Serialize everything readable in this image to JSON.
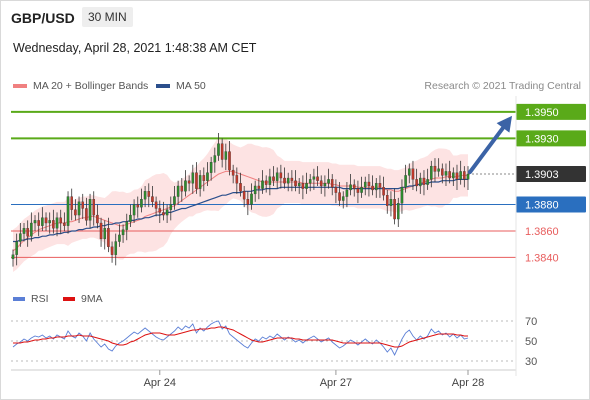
{
  "header": {
    "symbol": "GBP/USD",
    "timeframe": "30 MIN",
    "timestamp": "Wednesday, April 28, 2021 1:48:38 AM CET"
  },
  "legend": {
    "items": [
      {
        "label": "MA 20 + Bollinger Bands",
        "color": "#f08080"
      },
      {
        "label": "MA 50",
        "color": "#2b4f8c"
      }
    ],
    "credit": "Research © 2021 Trading Central"
  },
  "rsi_legend": {
    "items": [
      {
        "label": "RSI",
        "color": "#5b7fd6"
      },
      {
        "label": "9MA",
        "color": "#dd1111"
      }
    ]
  },
  "chart_data": [
    {
      "type": "line",
      "panel": "price",
      "ylim": [
        1.3832,
        1.3962
      ],
      "xlabel": "",
      "ylabel": "",
      "x_ticks": [
        "Apr 24",
        "Apr 27",
        "Apr 28"
      ],
      "grid": false,
      "levels": [
        {
          "value": 1.395,
          "label": "1.3950",
          "style": "resistance",
          "color": "#5aaa19"
        },
        {
          "value": 1.393,
          "label": "1.3930",
          "style": "resistance",
          "color": "#5aaa19"
        },
        {
          "value": 1.3903,
          "label": "1.3903",
          "style": "last-price",
          "color": "#333333"
        },
        {
          "value": 1.388,
          "label": "1.3880",
          "style": "pivot",
          "color": "#2a6fbf"
        },
        {
          "value": 1.386,
          "label": "1.3860",
          "style": "support",
          "color": "#e85d5d"
        },
        {
          "value": 1.384,
          "label": "1.3840",
          "style": "support",
          "color": "#e85d5d"
        }
      ],
      "arrow": {
        "direction": "up",
        "target": 1.395
      },
      "series": [
        {
          "name": "Close",
          "values": [
            1.3842,
            1.3852,
            1.3858,
            1.3862,
            1.3856,
            1.3866,
            1.3868,
            1.3864,
            1.387,
            1.3866,
            1.3868,
            1.3862,
            1.387,
            1.3866,
            1.3864,
            1.3886,
            1.3876,
            1.3872,
            1.3882,
            1.3877,
            1.3868,
            1.3884,
            1.3872,
            1.3866,
            1.3854,
            1.3862,
            1.3848,
            1.3842,
            1.3852,
            1.3857,
            1.3861,
            1.3867,
            1.3872,
            1.388,
            1.3878,
            1.3884,
            1.389,
            1.3886,
            1.3882,
            1.3877,
            1.3874,
            1.3872,
            1.3876,
            1.388,
            1.3886,
            1.3894,
            1.389,
            1.3898,
            1.3896,
            1.3904,
            1.3892,
            1.3902,
            1.3898,
            1.3904,
            1.3912,
            1.3917,
            1.3926,
            1.3914,
            1.392,
            1.3906,
            1.3902,
            1.3896,
            1.389,
            1.3884,
            1.388,
            1.3888,
            1.3894,
            1.3892,
            1.3898,
            1.3895,
            1.3901,
            1.3898,
            1.3904,
            1.39,
            1.3896,
            1.39,
            1.3898,
            1.3894,
            1.3896,
            1.3892,
            1.3896,
            1.3899,
            1.3901,
            1.3898,
            1.3894,
            1.3896,
            1.3899,
            1.3893,
            1.3889,
            1.3883,
            1.3886,
            1.3891,
            1.3895,
            1.3892,
            1.3889,
            1.3893,
            1.3897,
            1.3894,
            1.3891,
            1.3896,
            1.3893,
            1.3887,
            1.3879,
            1.3884,
            1.3869,
            1.3881,
            1.3893,
            1.3902,
            1.3907,
            1.3899,
            1.3894,
            1.39,
            1.3895,
            1.3899,
            1.3909,
            1.3905,
            1.3907,
            1.3902,
            1.3905,
            1.39,
            1.3904,
            1.3899,
            1.3905,
            1.3899,
            1.3903
          ]
        },
        {
          "name": "MA 20",
          "values": [
            1.3845,
            1.3847,
            1.385,
            1.3853,
            1.3855,
            1.3857,
            1.3859,
            1.3861,
            1.3862,
            1.3863,
            1.3864,
            1.3865,
            1.3866,
            1.3866,
            1.3866,
            1.3867,
            1.3867,
            1.3868,
            1.3869,
            1.387,
            1.387,
            1.3871,
            1.3871,
            1.387,
            1.3869,
            1.3868,
            1.3867,
            1.3866,
            1.3865,
            1.3864,
            1.3864,
            1.3865,
            1.3866,
            1.3867,
            1.3868,
            1.3869,
            1.3871,
            1.3872,
            1.3873,
            1.3874,
            1.3875,
            1.3876,
            1.3877,
            1.3878,
            1.3879,
            1.3881,
            1.3883,
            1.3885,
            1.3887,
            1.3889,
            1.3891,
            1.3893,
            1.3895,
            1.3897,
            1.3899,
            1.3901,
            1.3903,
            1.3904,
            1.3905,
            1.3905,
            1.3905,
            1.3904,
            1.3903,
            1.3902,
            1.3901,
            1.39,
            1.3899,
            1.3898,
            1.3897,
            1.3897,
            1.3897,
            1.3897,
            1.3897,
            1.3897,
            1.3897,
            1.3897,
            1.3897,
            1.3897,
            1.3897,
            1.3896,
            1.3896,
            1.3896,
            1.3896,
            1.3896,
            1.3896,
            1.3896,
            1.3896,
            1.3895,
            1.3895,
            1.3894,
            1.3894,
            1.3894,
            1.3894,
            1.3894,
            1.3893,
            1.3893,
            1.3893,
            1.3893,
            1.3893,
            1.3893,
            1.3893,
            1.3892,
            1.3891,
            1.3891,
            1.389,
            1.389,
            1.3891,
            1.3892,
            1.3893,
            1.3894,
            1.3895,
            1.3896,
            1.3897,
            1.3898,
            1.3899,
            1.39,
            1.39,
            1.39,
            1.3901,
            1.3901,
            1.3901,
            1.3901,
            1.3902,
            1.3902,
            1.3902
          ]
        },
        {
          "name": "MA 50",
          "values": [
            1.3852,
            1.3852,
            1.3853,
            1.3853,
            1.3854,
            1.3854,
            1.3855,
            1.3855,
            1.3856,
            1.3856,
            1.3857,
            1.3857,
            1.3858,
            1.3858,
            1.3859,
            1.3859,
            1.386,
            1.386,
            1.3861,
            1.3861,
            1.3862,
            1.3862,
            1.3863,
            1.3863,
            1.3864,
            1.3864,
            1.3865,
            1.3865,
            1.3866,
            1.3866,
            1.3867,
            1.3867,
            1.3868,
            1.3868,
            1.3869,
            1.3869,
            1.387,
            1.387,
            1.3871,
            1.3872,
            1.3872,
            1.3873,
            1.3874,
            1.3874,
            1.3875,
            1.3876,
            1.3877,
            1.3877,
            1.3878,
            1.3879,
            1.388,
            1.3881,
            1.3882,
            1.3883,
            1.3884,
            1.3885,
            1.3886,
            1.3887,
            1.3887,
            1.3888,
            1.3889,
            1.3889,
            1.3889,
            1.389,
            1.389,
            1.389,
            1.3891,
            1.3891,
            1.3891,
            1.3892,
            1.3892,
            1.3892,
            1.3892,
            1.3893,
            1.3893,
            1.3893,
            1.3893,
            1.3893,
            1.3893,
            1.3893,
            1.3893,
            1.3893,
            1.3893,
            1.3893,
            1.3893,
            1.3893,
            1.3893,
            1.3893,
            1.3893,
            1.3893,
            1.3892,
            1.3892,
            1.3892,
            1.3892,
            1.3892,
            1.3892,
            1.3892,
            1.3892,
            1.3892,
            1.3892,
            1.3892,
            1.3892,
            1.3892,
            1.3892,
            1.3892,
            1.3892,
            1.3893,
            1.3893,
            1.3894,
            1.3894,
            1.3895,
            1.3895,
            1.3896,
            1.3896,
            1.3897,
            1.3897,
            1.3897,
            1.3898,
            1.3898,
            1.3898,
            1.3898,
            1.3899,
            1.3899,
            1.3899,
            1.3899
          ]
        }
      ]
    },
    {
      "type": "line",
      "panel": "rsi",
      "ylim": [
        25,
        75
      ],
      "y_ticks": [
        70,
        50,
        30
      ],
      "series": [
        {
          "name": "RSI",
          "values": [
            44,
            47,
            49,
            52,
            50,
            53,
            55,
            54,
            56,
            53,
            55,
            52,
            56,
            54,
            52,
            60,
            55,
            53,
            58,
            55,
            50,
            58,
            52,
            48,
            44,
            47,
            42,
            40,
            45,
            48,
            50,
            53,
            56,
            59,
            57,
            60,
            63,
            60,
            57,
            54,
            52,
            51,
            54,
            57,
            60,
            64,
            61,
            65,
            63,
            67,
            58,
            63,
            60,
            64,
            67,
            69,
            70,
            62,
            65,
            57,
            54,
            51,
            48,
            45,
            43,
            48,
            52,
            50,
            54,
            52,
            55,
            53,
            57,
            54,
            51,
            54,
            52,
            49,
            51,
            48,
            51,
            53,
            55,
            52,
            49,
            51,
            53,
            49,
            46,
            43,
            45,
            48,
            51,
            49,
            46,
            49,
            52,
            49,
            47,
            51,
            48,
            44,
            39,
            43,
            36,
            44,
            52,
            58,
            61,
            55,
            51,
            55,
            52,
            55,
            62,
            58,
            60,
            56,
            58,
            54,
            57,
            53,
            56,
            52,
            53
          ]
        },
        {
          "name": "9MA",
          "values": [
            48,
            48,
            48,
            49,
            49,
            50,
            51,
            51,
            52,
            52,
            53,
            53,
            54,
            54,
            54,
            55,
            55,
            55,
            56,
            55,
            55,
            55,
            54,
            53,
            52,
            51,
            50,
            48,
            47,
            46,
            46,
            47,
            49,
            50,
            52,
            54,
            56,
            57,
            58,
            58,
            58,
            57,
            56,
            56,
            56,
            57,
            58,
            59,
            60,
            61,
            61,
            62,
            62,
            62,
            63,
            63,
            64,
            64,
            63,
            62,
            61,
            59,
            57,
            55,
            53,
            51,
            50,
            49,
            49,
            50,
            51,
            52,
            53,
            53,
            53,
            53,
            53,
            52,
            52,
            51,
            51,
            51,
            51,
            51,
            51,
            51,
            51,
            51,
            50,
            49,
            48,
            48,
            48,
            48,
            48,
            48,
            48,
            48,
            48,
            48,
            48,
            47,
            46,
            45,
            44,
            44,
            45,
            47,
            49,
            50,
            51,
            52,
            53,
            54,
            55,
            56,
            57,
            57,
            57,
            57,
            57,
            56,
            56,
            55,
            55
          ]
        }
      ]
    }
  ]
}
